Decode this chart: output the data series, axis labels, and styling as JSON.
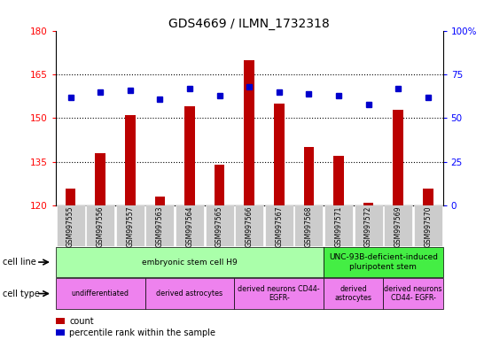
{
  "title": "GDS4669 / ILMN_1732318",
  "samples": [
    "GSM997555",
    "GSM997556",
    "GSM997557",
    "GSM997563",
    "GSM997564",
    "GSM997565",
    "GSM997566",
    "GSM997567",
    "GSM997568",
    "GSM997571",
    "GSM997572",
    "GSM997569",
    "GSM997570"
  ],
  "counts": [
    126,
    138,
    151,
    123,
    154,
    134,
    170,
    155,
    140,
    137,
    121,
    153,
    126
  ],
  "percentiles": [
    62,
    65,
    66,
    61,
    67,
    63,
    68,
    65,
    64,
    63,
    58,
    67,
    62
  ],
  "ylim_left": [
    120,
    180
  ],
  "ylim_right": [
    0,
    100
  ],
  "yticks_left": [
    120,
    135,
    150,
    165,
    180
  ],
  "yticks_right": [
    0,
    25,
    50,
    75,
    100
  ],
  "bar_color": "#bb0000",
  "dot_color": "#0000cc",
  "plot_bg": "#ffffff",
  "xtick_bg": "#cccccc",
  "cell_line_groups": [
    {
      "label": "embryonic stem cell H9",
      "start": 0,
      "end": 9,
      "color": "#aaffaa"
    },
    {
      "label": "UNC-93B-deficient-induced\npluripotent stem",
      "start": 9,
      "end": 13,
      "color": "#44ee44"
    }
  ],
  "cell_type_groups": [
    {
      "label": "undifferentiated",
      "start": 0,
      "end": 3,
      "color": "#ee82ee"
    },
    {
      "label": "derived astrocytes",
      "start": 3,
      "end": 6,
      "color": "#ee82ee"
    },
    {
      "label": "derived neurons CD44-\nEGFR-",
      "start": 6,
      "end": 9,
      "color": "#ee82ee"
    },
    {
      "label": "derived\nastrocytes",
      "start": 9,
      "end": 11,
      "color": "#ee82ee"
    },
    {
      "label": "derived neurons\nCD44- EGFR-",
      "start": 11,
      "end": 13,
      "color": "#ee82ee"
    }
  ],
  "legend_count_color": "#bb0000",
  "legend_pct_color": "#0000cc",
  "right_axis_labels": [
    "0",
    "25",
    "50",
    "75",
    "100%"
  ]
}
